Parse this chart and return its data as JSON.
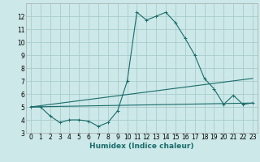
{
  "title": "",
  "xlabel": "Humidex (Indice chaleur)",
  "bg_color": "#cce8e8",
  "grid_color": "#aacccc",
  "line_color": "#1a6b6b",
  "xlim": [
    -0.5,
    23.5
  ],
  "ylim": [
    3,
    13
  ],
  "xtick_labels": [
    "0",
    "1",
    "2",
    "3",
    "4",
    "5",
    "6",
    "7",
    "8",
    "9",
    "10",
    "11",
    "12",
    "13",
    "14",
    "15",
    "16",
    "17",
    "18",
    "19",
    "20",
    "21",
    "22",
    "23"
  ],
  "xtick_vals": [
    0,
    1,
    2,
    3,
    4,
    5,
    6,
    7,
    8,
    9,
    10,
    11,
    12,
    13,
    14,
    15,
    16,
    17,
    18,
    19,
    20,
    21,
    22,
    23
  ],
  "yticks": [
    3,
    4,
    5,
    6,
    7,
    8,
    9,
    10,
    11,
    12
  ],
  "line1_x": [
    0,
    1,
    2,
    3,
    4,
    5,
    6,
    7,
    8,
    9,
    10,
    11,
    12,
    13,
    14,
    15,
    16,
    17,
    18,
    19,
    20,
    21,
    22,
    23
  ],
  "line1_y": [
    5.0,
    5.0,
    4.3,
    3.8,
    4.0,
    4.0,
    3.9,
    3.5,
    3.8,
    4.7,
    7.0,
    12.3,
    11.7,
    12.0,
    12.3,
    11.5,
    10.3,
    9.0,
    7.2,
    6.4,
    5.2,
    5.9,
    5.2,
    5.3
  ],
  "line2_x": [
    0,
    23
  ],
  "line2_y": [
    5.0,
    5.3
  ],
  "line3_x": [
    0,
    23
  ],
  "line3_y": [
    5.0,
    7.2
  ],
  "marker": "+"
}
